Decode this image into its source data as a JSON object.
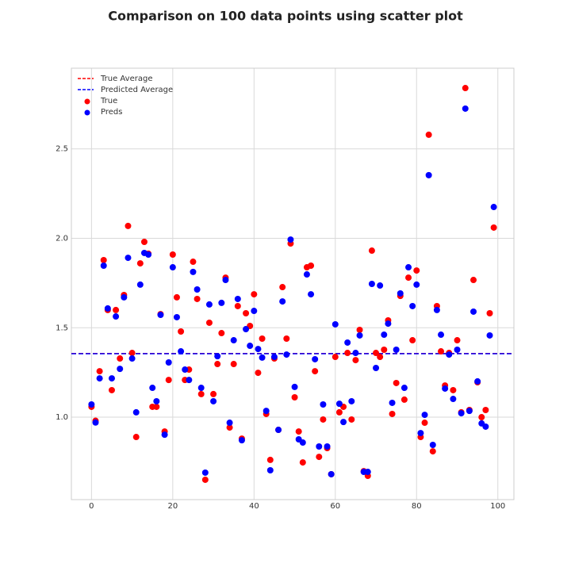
{
  "chart_data": {
    "type": "scatter",
    "title": "Comparison on 100 data points using scatter plot",
    "x": [
      0,
      1,
      2,
      3,
      4,
      5,
      6,
      7,
      8,
      9,
      10,
      11,
      12,
      13,
      14,
      15,
      16,
      17,
      18,
      19,
      20,
      21,
      22,
      23,
      24,
      25,
      26,
      27,
      28,
      29,
      30,
      31,
      32,
      33,
      34,
      35,
      36,
      37,
      38,
      39,
      40,
      41,
      42,
      43,
      44,
      45,
      46,
      47,
      48,
      49,
      50,
      51,
      52,
      53,
      54,
      55,
      56,
      57,
      58,
      59,
      60,
      61,
      62,
      63,
      64,
      65,
      66,
      67,
      68,
      69,
      70,
      71,
      72,
      73,
      74,
      75,
      76,
      77,
      78,
      79,
      80,
      81,
      82,
      83,
      84,
      85,
      86,
      87,
      88,
      89,
      90,
      91,
      92,
      93,
      94,
      95,
      96,
      97,
      98,
      99
    ],
    "series": [
      {
        "name": "True",
        "color": "#ff0000",
        "values": [
          1.058,
          0.98,
          1.257,
          1.878,
          1.599,
          1.151,
          1.599,
          1.328,
          1.683,
          2.069,
          1.359,
          0.889,
          1.86,
          1.98,
          1.914,
          1.058,
          1.058,
          1.576,
          0.92,
          1.208,
          1.909,
          1.67,
          1.479,
          1.208,
          1.266,
          1.869,
          1.661,
          1.129,
          0.65,
          1.528,
          1.129,
          1.297,
          1.47,
          1.78,
          0.942,
          1.297,
          1.621,
          0.88,
          1.581,
          1.51,
          1.687,
          1.248,
          1.439,
          1.018,
          0.761,
          1.328,
          0.929,
          1.727,
          1.439,
          1.971,
          1.111,
          0.92,
          0.747,
          1.838,
          1.847,
          1.257,
          0.778,
          0.987,
          0.827,
          0.681,
          1.337,
          1.027,
          1.058,
          1.359,
          0.987,
          1.319,
          1.488,
          0.698,
          0.672,
          1.931,
          1.359,
          1.337,
          1.377,
          1.541,
          1.018,
          1.191,
          1.678,
          1.098,
          1.78,
          1.43,
          1.82,
          0.889,
          0.969,
          2.579,
          0.809,
          1.621,
          1.368,
          1.177,
          1.359,
          1.151,
          1.43,
          1.027,
          2.84,
          1.04,
          1.767,
          1.195,
          1.0,
          1.04,
          1.581,
          2.06
        ]
      },
      {
        "name": "Preds",
        "color": "#0000ff",
        "values": [
          1.071,
          0.97,
          1.217,
          1.847,
          1.608,
          1.217,
          1.563,
          1.27,
          1.67,
          1.891,
          1.328,
          1.027,
          1.741,
          1.918,
          1.909,
          1.164,
          1.089,
          1.572,
          0.902,
          1.306,
          1.838,
          1.559,
          1.368,
          1.266,
          1.208,
          1.812,
          1.714,
          1.164,
          0.69,
          1.63,
          1.089,
          1.341,
          1.639,
          1.767,
          0.969,
          1.43,
          1.661,
          0.871,
          1.492,
          1.399,
          1.594,
          1.381,
          1.333,
          1.035,
          0.703,
          1.337,
          0.929,
          1.647,
          1.35,
          1.993,
          1.169,
          0.876,
          0.858,
          1.798,
          1.687,
          1.324,
          0.836,
          1.071,
          0.836,
          0.681,
          1.519,
          1.075,
          0.973,
          1.417,
          1.089,
          1.359,
          1.457,
          0.694,
          0.694,
          1.745,
          1.275,
          1.736,
          1.461,
          1.523,
          1.08,
          1.377,
          1.692,
          1.164,
          1.838,
          1.621,
          1.741,
          0.911,
          1.013,
          2.353,
          0.845,
          1.599,
          1.461,
          1.16,
          1.35,
          1.102,
          1.377,
          1.022,
          2.725,
          1.035,
          1.59,
          1.2,
          0.965,
          0.947,
          1.457,
          2.175
        ]
      }
    ],
    "hlines": [
      {
        "name": "True Average",
        "color": "#ff0000",
        "value": 1.356
      },
      {
        "name": "Predicted Average",
        "color": "#0000ff",
        "value": 1.355
      }
    ],
    "xlim": [
      -4.95,
      103.95
    ],
    "ylim": [
      0.539,
      2.951
    ],
    "xticks": [
      0,
      20,
      40,
      60,
      80,
      100
    ],
    "yticks": [
      {
        "value": 1.0,
        "label": "1.0"
      },
      {
        "value": 1.5,
        "label": "1.5"
      },
      {
        "value": 2.0,
        "label": "2.0"
      },
      {
        "value": 2.5,
        "label": "2.5"
      }
    ],
    "grid": true,
    "legend": "upper left"
  }
}
